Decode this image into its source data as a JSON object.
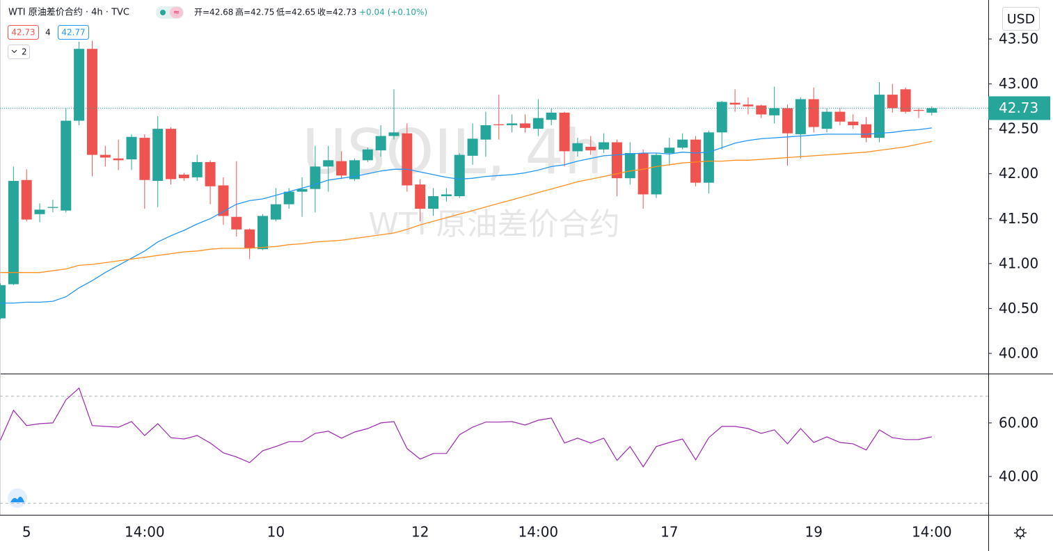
{
  "header": {
    "symbol": "WTI 原油差价合约 · 4h · TVC",
    "ohlc": [
      "开=42.68",
      "高=42.75",
      "低=42.65",
      "收=42.73"
    ],
    "change": "+0.04 (+0.10%)",
    "ma_values": [
      "42.73",
      "4",
      "42.77"
    ],
    "collapse": "2",
    "currency": "USD"
  },
  "watermark": [
    "USOIL, 4h",
    "WTI 原油差价合约"
  ],
  "chart_data": [
    {
      "type": "candlestick",
      "categories": [
        null,
        null,
        "5",
        null,
        null,
        null,
        null,
        null,
        null,
        null,
        null,
        "14:00",
        null,
        null,
        null,
        null,
        null,
        null,
        null,
        null,
        null,
        "10",
        null,
        null,
        null,
        null,
        null,
        null,
        null,
        null,
        null,
        null,
        "12",
        null,
        null,
        null,
        null,
        null,
        null,
        null,
        null,
        "14:00",
        null,
        null,
        null,
        null,
        null,
        null,
        null,
        null,
        null,
        "17",
        null,
        null,
        null,
        null,
        null,
        null,
        null,
        null,
        null,
        null,
        "19",
        null,
        null,
        null,
        null,
        null,
        null,
        null,
        null,
        "14:00"
      ],
      "open": [
        40.39,
        40.77,
        41.93,
        41.55,
        41.62,
        41.59,
        42.59,
        43.39,
        42.21,
        42.17,
        42.16,
        42.4,
        41.92,
        42.5,
        41.99,
        41.96,
        42.13,
        41.87,
        41.52,
        41.38,
        41.16,
        41.49,
        41.66,
        41.8,
        41.83,
        42.08,
        42.14,
        41.94,
        42.15,
        42.26,
        42.42,
        42.45,
        41.88,
        41.61,
        41.75,
        41.75,
        42.2,
        42.38,
        42.55,
        42.54,
        42.56,
        42.5,
        42.6,
        42.68,
        42.25,
        42.3,
        42.27,
        42.35,
        41.95,
        42.23,
        41.77,
        42.23,
        42.29,
        42.38,
        41.9,
        42.46,
        42.79,
        42.77,
        42.76,
        42.65,
        42.73,
        42.44,
        42.83,
        42.5,
        42.69,
        42.58,
        42.55,
        42.4,
        42.88,
        42.94,
        42.71,
        42.68
      ],
      "high": [
        40.78,
        42.08,
        42.05,
        41.67,
        41.71,
        42.73,
        43.47,
        43.48,
        42.31,
        42.38,
        42.44,
        42.44,
        42.64,
        42.52,
        42.01,
        42.21,
        42.15,
        41.96,
        42.14,
        41.39,
        41.55,
        41.84,
        41.84,
        41.96,
        42.31,
        42.31,
        42.25,
        42.17,
        42.29,
        42.54,
        42.94,
        42.56,
        41.94,
        41.84,
        41.84,
        42.23,
        42.56,
        42.69,
        42.88,
        42.66,
        42.66,
        42.83,
        42.73,
        42.69,
        42.4,
        42.42,
        42.45,
        42.38,
        42.35,
        42.27,
        42.23,
        42.4,
        42.45,
        42.42,
        42.48,
        42.81,
        42.94,
        42.85,
        42.77,
        42.97,
        42.77,
        42.85,
        42.96,
        42.73,
        42.73,
        42.66,
        42.63,
        43.02,
        43.0,
        42.96,
        42.73,
        42.75
      ],
      "low": [
        40.38,
        40.76,
        41.47,
        41.46,
        41.57,
        41.57,
        42.54,
        41.97,
        42.08,
        42.04,
        42.04,
        41.61,
        41.63,
        41.88,
        41.92,
        41.92,
        41.66,
        41.43,
        41.3,
        41.05,
        41.15,
        41.47,
        41.61,
        41.52,
        41.57,
        41.8,
        41.94,
        41.92,
        42.13,
        42.19,
        42.38,
        41.8,
        41.47,
        41.53,
        41.69,
        41.73,
        42.1,
        42.19,
        42.38,
        42.46,
        42.46,
        42.42,
        42.54,
        42.08,
        42.19,
        42.21,
        42.23,
        41.75,
        41.88,
        41.61,
        41.73,
        42.09,
        42.27,
        41.86,
        41.78,
        42.27,
        42.69,
        42.66,
        42.62,
        42.56,
        42.09,
        42.17,
        42.46,
        42.46,
        42.54,
        42.5,
        42.35,
        42.35,
        42.68,
        42.67,
        42.62,
        42.65
      ],
      "close": [
        40.76,
        41.92,
        41.49,
        41.6,
        41.63,
        42.59,
        43.39,
        42.21,
        42.18,
        42.15,
        42.41,
        41.93,
        42.5,
        41.94,
        41.95,
        42.13,
        41.86,
        41.53,
        41.38,
        41.17,
        41.53,
        41.66,
        41.8,
        41.83,
        42.08,
        42.15,
        41.98,
        42.15,
        42.27,
        42.42,
        42.46,
        41.87,
        41.61,
        41.75,
        41.77,
        42.21,
        42.39,
        42.54,
        42.54,
        42.56,
        42.51,
        42.62,
        42.68,
        42.25,
        42.34,
        42.26,
        42.35,
        41.95,
        42.23,
        41.77,
        42.21,
        42.29,
        42.38,
        41.9,
        42.46,
        42.8,
        42.77,
        42.75,
        42.66,
        42.73,
        42.45,
        42.83,
        42.52,
        42.69,
        42.58,
        42.54,
        42.4,
        42.88,
        42.73,
        42.69,
        42.7,
        42.73
      ],
      "up_color": "#26a69a",
      "down_color": "#ef5350",
      "series": [
        {
          "color": "#2196f3",
          "values": [
            40.56,
            40.56,
            40.57,
            40.57,
            40.58,
            40.63,
            40.73,
            40.81,
            40.9,
            40.98,
            41.06,
            41.14,
            41.24,
            41.31,
            41.37,
            41.44,
            41.5,
            41.58,
            41.66,
            41.7,
            41.72,
            41.76,
            41.8,
            41.84,
            41.88,
            41.93,
            41.95,
            41.97,
            42.0,
            42.03,
            42.05,
            42.05,
            42.02,
            41.99,
            41.96,
            41.94,
            41.95,
            41.97,
            41.98,
            41.99,
            42.01,
            42.04,
            42.08,
            42.1,
            42.14,
            42.17,
            42.2,
            42.21,
            42.22,
            42.23,
            42.23,
            42.22,
            42.24,
            42.23,
            42.24,
            42.29,
            42.34,
            42.37,
            42.39,
            42.4,
            42.41,
            42.42,
            42.43,
            42.44,
            42.44,
            42.44,
            42.44,
            42.45,
            42.46,
            42.48,
            42.49,
            42.51
          ]
        },
        {
          "color": "#ff8f1f",
          "values": [
            40.9,
            40.9,
            40.9,
            40.9,
            40.92,
            40.94,
            40.98,
            40.99,
            41.01,
            41.03,
            41.05,
            41.07,
            41.09,
            41.11,
            41.13,
            41.14,
            41.16,
            41.17,
            41.17,
            41.17,
            41.18,
            41.19,
            41.21,
            41.22,
            41.24,
            41.25,
            41.26,
            41.28,
            41.3,
            41.32,
            41.34,
            41.38,
            41.43,
            41.47,
            41.51,
            41.55,
            41.59,
            41.63,
            41.67,
            41.71,
            41.75,
            41.79,
            41.83,
            41.87,
            41.91,
            41.94,
            41.97,
            42.0,
            42.03,
            42.05,
            42.08,
            42.1,
            42.12,
            42.13,
            42.14,
            42.14,
            42.15,
            42.15,
            42.16,
            42.17,
            42.18,
            42.19,
            42.2,
            42.21,
            42.22,
            42.23,
            42.24,
            42.26,
            42.28,
            42.3,
            42.33,
            42.36
          ]
        }
      ],
      "last_price": {
        "value": 42.73,
        "label": "42.73"
      },
      "ylim": [
        39.775,
        43.934
      ],
      "yticks": [
        {
          "value": 40,
          "label": "40.00"
        },
        {
          "value": 40.5,
          "label": "40.50"
        },
        {
          "value": 41,
          "label": "41.00"
        },
        {
          "value": 41.5,
          "label": "41.50"
        },
        {
          "value": 42,
          "label": "42.00"
        },
        {
          "value": 42.5,
          "label": "42.50"
        },
        {
          "value": 43,
          "label": "43.00"
        },
        {
          "value": 43.5,
          "label": "43.50"
        }
      ],
      "grid": false
    },
    {
      "type": "line",
      "color": "#9c27b0",
      "values": [
        53.5,
        64.7,
        59.0,
        59.7,
        60.0,
        68.6,
        73.0,
        59.0,
        58.7,
        58.4,
        60.5,
        55.3,
        59.7,
        54.5,
        54.0,
        55.3,
        52.5,
        48.8,
        47.3,
        45.2,
        49.6,
        51.2,
        53.0,
        53.0,
        56.1,
        56.9,
        54.3,
        56.6,
        57.9,
        60.0,
        60.5,
        50.4,
        46.5,
        48.6,
        48.6,
        55.6,
        58.4,
        60.3,
        60.3,
        60.5,
        59.2,
        61.0,
        61.8,
        52.5,
        54.3,
        52.5,
        54.3,
        46.0,
        51.2,
        43.6,
        51.2,
        52.7,
        54.0,
        46.2,
        54.5,
        58.7,
        58.7,
        57.9,
        56.1,
        57.4,
        52.2,
        57.9,
        52.7,
        54.8,
        52.7,
        52.2,
        49.9,
        57.4,
        54.5,
        53.8,
        53.8,
        54.8
      ],
      "levels": [
        30,
        70
      ],
      "ylim": [
        25.7,
        78.4
      ],
      "yticks": [
        {
          "value": 40,
          "label": "40.00"
        },
        {
          "value": 60,
          "label": "60.00"
        }
      ]
    }
  ]
}
